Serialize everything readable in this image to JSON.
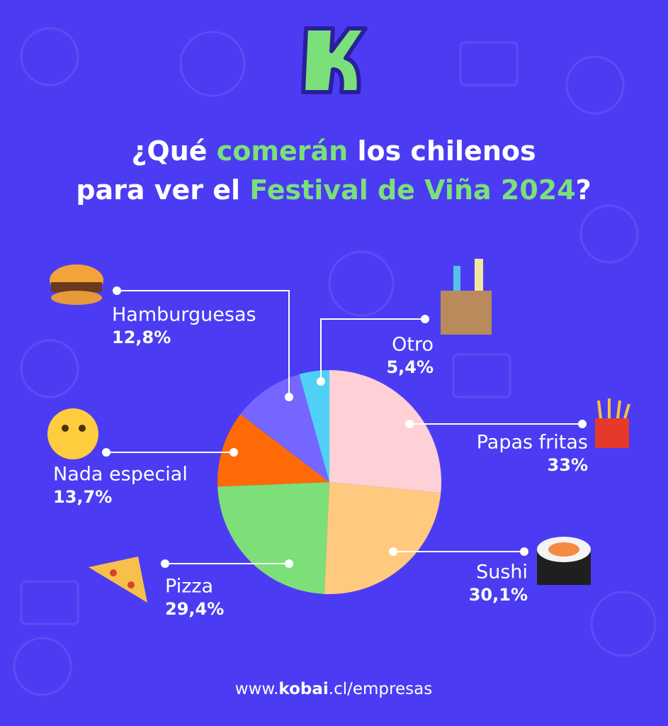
{
  "chart_data": {
    "type": "pie",
    "title_lines": [
      [
        {
          "text": "¿Qué ",
          "color": "#ffffff"
        },
        {
          "text": "comerán",
          "color": "#7be07a"
        },
        {
          "text": " los chilenos",
          "color": "#ffffff"
        }
      ],
      [
        {
          "text": "para ver el ",
          "color": "#ffffff"
        },
        {
          "text": "Festival de Viña 2024",
          "color": "#7be07a"
        },
        {
          "text": "?",
          "color": "#ffffff"
        }
      ]
    ],
    "categories": [
      "Papas fritas",
      "Sushi",
      "Pizza",
      "Nada especial",
      "Hamburguesas",
      "Otro"
    ],
    "values": [
      33,
      30.1,
      29.4,
      13.7,
      12.8,
      5.4
    ],
    "value_labels": [
      "33%",
      "30,1%",
      "29,4%",
      "13,7%",
      "12,8%",
      "5,4%"
    ],
    "colors": [
      "#ffd0d6",
      "#ffca80",
      "#7ddf78",
      "#ff6a08",
      "#7466ff",
      "#4fd1f5"
    ],
    "footer": [
      {
        "text": "www.",
        "bold": false
      },
      {
        "text": "kobai",
        "bold": true
      },
      {
        "text": ".cl/empresas",
        "bold": false
      }
    ]
  }
}
